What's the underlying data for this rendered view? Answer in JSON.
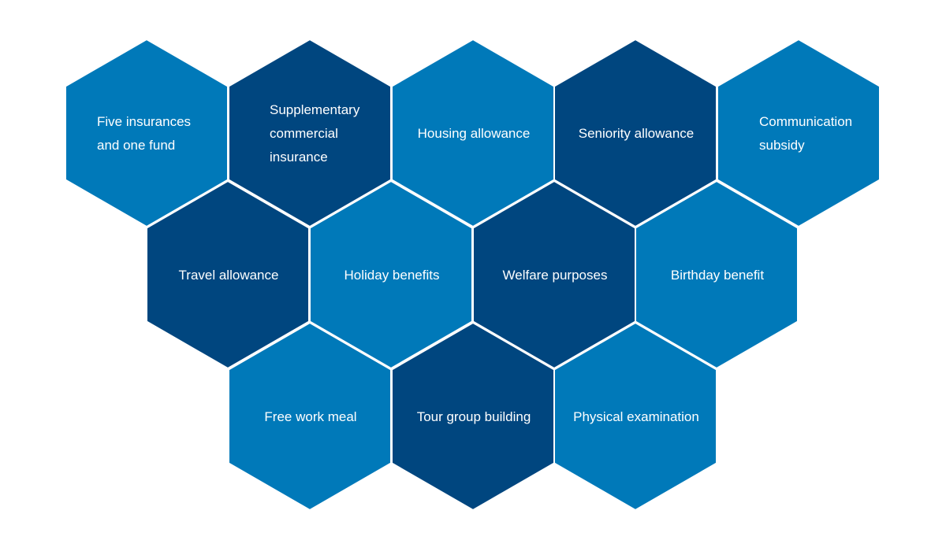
{
  "colors": {
    "light": "#0079b9",
    "dark": "#00467f",
    "border": "#ffffff"
  },
  "cells": [
    {
      "lines": [
        "Five insurances",
        "and one fund"
      ],
      "shade": "light",
      "align": "left"
    },
    {
      "lines": [
        "Supplementary",
        "commercial",
        "insurance"
      ],
      "shade": "dark",
      "align": "left"
    },
    {
      "lines": [
        "Housing allowance"
      ],
      "shade": "light",
      "align": "center"
    },
    {
      "lines": [
        "Seniority allowance"
      ],
      "shade": "dark",
      "align": "center"
    },
    {
      "lines": [
        "Communication",
        "subsidy"
      ],
      "shade": "light",
      "align": "left"
    },
    {
      "lines": [
        "Travel allowance"
      ],
      "shade": "dark",
      "align": "center"
    },
    {
      "lines": [
        "Holiday benefits"
      ],
      "shade": "light",
      "align": "center"
    },
    {
      "lines": [
        "Welfare purposes"
      ],
      "shade": "dark",
      "align": "center"
    },
    {
      "lines": [
        "Birthday benefit"
      ],
      "shade": "light",
      "align": "center"
    },
    {
      "lines": [
        "Free work meal"
      ],
      "shade": "light",
      "align": "center"
    },
    {
      "lines": [
        "Tour group building"
      ],
      "shade": "dark",
      "align": "center"
    },
    {
      "lines": [
        "Physical examination"
      ],
      "shade": "light",
      "align": "center"
    }
  ]
}
